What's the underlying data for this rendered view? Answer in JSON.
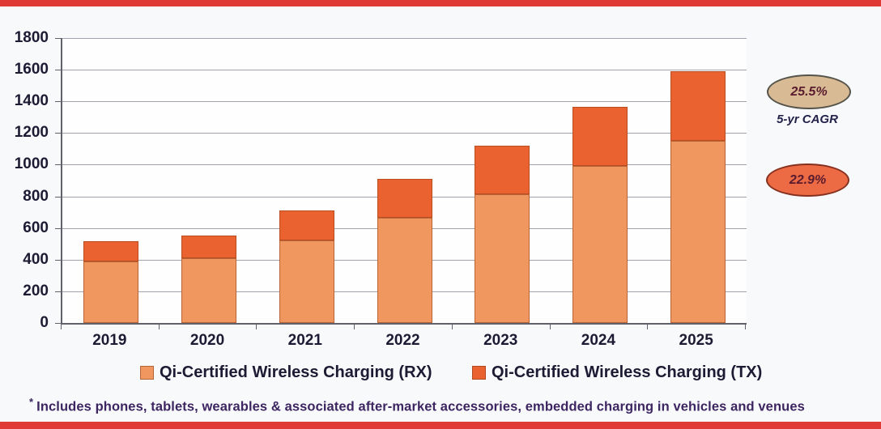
{
  "page": {
    "background": "#F8F9FB",
    "edge_strip_color": "#DF3A35",
    "grid_color": "#A0A3AC",
    "axis_color": "#5F626B",
    "text_color": "#1B1B33"
  },
  "chart_data": {
    "type": "bar",
    "stacked": true,
    "title": "",
    "xlabel": "",
    "ylabel": "",
    "categories": [
      "2019",
      "2020",
      "2021",
      "2022",
      "2023",
      "2024",
      "2025"
    ],
    "series": [
      {
        "name": "Qi-Certified Wireless Charging (RX)",
        "color": "#F0965F",
        "values": [
          390,
          410,
          520,
          665,
          815,
          990,
          1150
        ]
      },
      {
        "name": "Qi-Certified Wireless Charging (TX)",
        "color": "#EB6231",
        "values": [
          125,
          140,
          190,
          245,
          305,
          375,
          440
        ]
      }
    ],
    "totals": [
      515,
      550,
      710,
      910,
      1120,
      1365,
      1590
    ],
    "ylim": [
      0,
      1800
    ],
    "ytick_interval": 200,
    "grid": true,
    "legend_position": "bottom"
  },
  "annotations": {
    "cagr_top": {
      "value": "25.5%",
      "fill": "#D8BB94"
    },
    "cagr_label": "5-yr CAGR",
    "cagr_bottom": {
      "value": "22.9%",
      "fill": "#EC6A44"
    }
  },
  "footnote": {
    "marker": "*",
    "text": "Includes phones, tablets, wearables & associated after-market accessories, embedded charging in vehicles and venues"
  }
}
